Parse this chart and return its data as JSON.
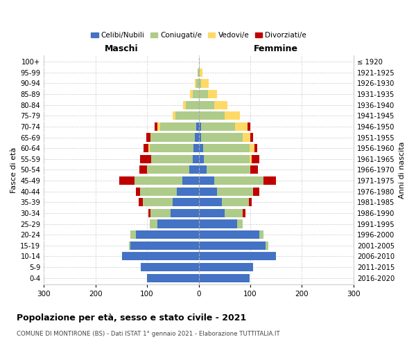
{
  "age_groups": [
    "0-4",
    "5-9",
    "10-14",
    "15-19",
    "20-24",
    "25-29",
    "30-34",
    "35-39",
    "40-44",
    "45-49",
    "50-54",
    "55-59",
    "60-64",
    "65-69",
    "70-74",
    "75-79",
    "80-84",
    "85-89",
    "90-94",
    "95-99",
    "100+"
  ],
  "birth_years": [
    "2016-2020",
    "2011-2015",
    "2006-2010",
    "2001-2005",
    "1996-2000",
    "1991-1995",
    "1986-1990",
    "1981-1985",
    "1976-1980",
    "1971-1975",
    "1966-1970",
    "1961-1965",
    "1956-1960",
    "1951-1955",
    "1946-1950",
    "1941-1945",
    "1936-1940",
    "1931-1935",
    "1926-1930",
    "1921-1925",
    "≤ 1920"
  ],
  "males": {
    "celibi": [
      100,
      112,
      148,
      132,
      122,
      80,
      55,
      50,
      42,
      32,
      18,
      12,
      10,
      8,
      5,
      0,
      0,
      0,
      0,
      0,
      0
    ],
    "coniugati": [
      0,
      0,
      0,
      3,
      10,
      15,
      38,
      58,
      72,
      92,
      82,
      80,
      85,
      85,
      70,
      45,
      25,
      12,
      5,
      2,
      0
    ],
    "vedovi": [
      0,
      0,
      0,
      0,
      0,
      0,
      0,
      0,
      0,
      0,
      0,
      0,
      2,
      0,
      5,
      5,
      5,
      5,
      2,
      0,
      0
    ],
    "divorziati": [
      0,
      0,
      0,
      0,
      0,
      0,
      5,
      8,
      8,
      30,
      15,
      22,
      10,
      8,
      5,
      0,
      0,
      0,
      0,
      0,
      0
    ]
  },
  "females": {
    "nubili": [
      98,
      105,
      150,
      130,
      118,
      75,
      50,
      45,
      35,
      30,
      15,
      10,
      8,
      5,
      5,
      0,
      0,
      0,
      0,
      0,
      0
    ],
    "coniugate": [
      0,
      0,
      0,
      5,
      8,
      10,
      35,
      52,
      70,
      95,
      85,
      88,
      90,
      80,
      65,
      50,
      30,
      18,
      5,
      2,
      0
    ],
    "vedove": [
      0,
      0,
      0,
      0,
      0,
      0,
      0,
      0,
      0,
      0,
      0,
      5,
      10,
      15,
      25,
      30,
      25,
      18,
      15,
      5,
      2
    ],
    "divorziate": [
      0,
      0,
      0,
      0,
      0,
      0,
      5,
      5,
      12,
      25,
      15,
      15,
      5,
      5,
      5,
      0,
      0,
      0,
      0,
      0,
      0
    ]
  },
  "colors": {
    "celibi_nubili": "#4472C4",
    "coniugati": "#AECB8A",
    "vedovi": "#FFD966",
    "divorziati": "#C00000"
  },
  "xlim": 300,
  "title": "Popolazione per età, sesso e stato civile - 2021",
  "subtitle": "COMUNE DI MONTIRONE (BS) - Dati ISTAT 1° gennaio 2021 - Elaborazione TUTTITALIA.IT",
  "xlabel_left": "Maschi",
  "xlabel_right": "Femmine",
  "ylabel": "Fasce di età",
  "ylabel_right": "Anni di nascita",
  "xticks": [
    -300,
    -200,
    -100,
    0,
    100,
    200,
    300
  ]
}
